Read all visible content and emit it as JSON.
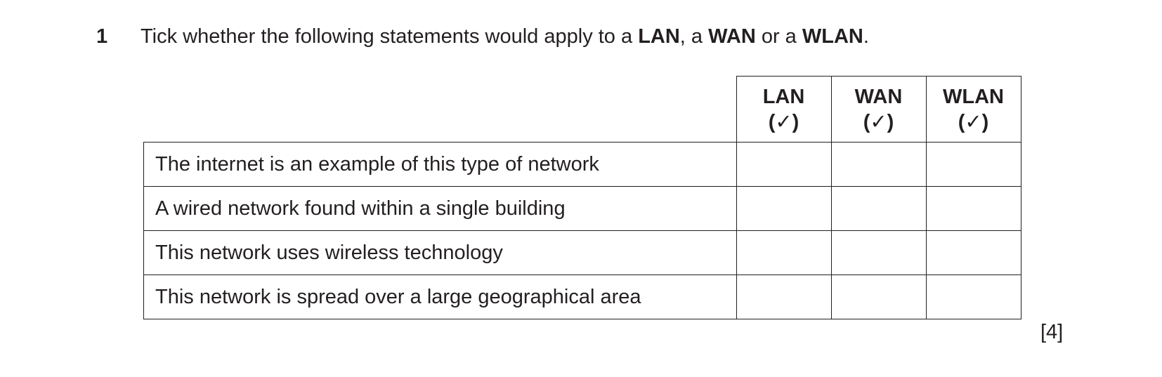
{
  "question": {
    "number": "1",
    "text_before": "Tick whether the following statements would apply to a ",
    "term_lan": "LAN",
    "text_mid1": ", a ",
    "term_wan": "WAN",
    "text_mid2": " or a ",
    "term_wlan": "WLAN",
    "text_end": "."
  },
  "table": {
    "columns": [
      {
        "label": "LAN",
        "tick": "(✓)"
      },
      {
        "label": "WAN",
        "tick": "(✓)"
      },
      {
        "label": "WLAN",
        "tick": "(✓)"
      }
    ],
    "rows": [
      "The internet is an example of this type of network",
      "A wired network found within a single building",
      "This network uses wireless technology",
      "This network is spread over a large geographical area"
    ]
  },
  "marks": "[4]"
}
